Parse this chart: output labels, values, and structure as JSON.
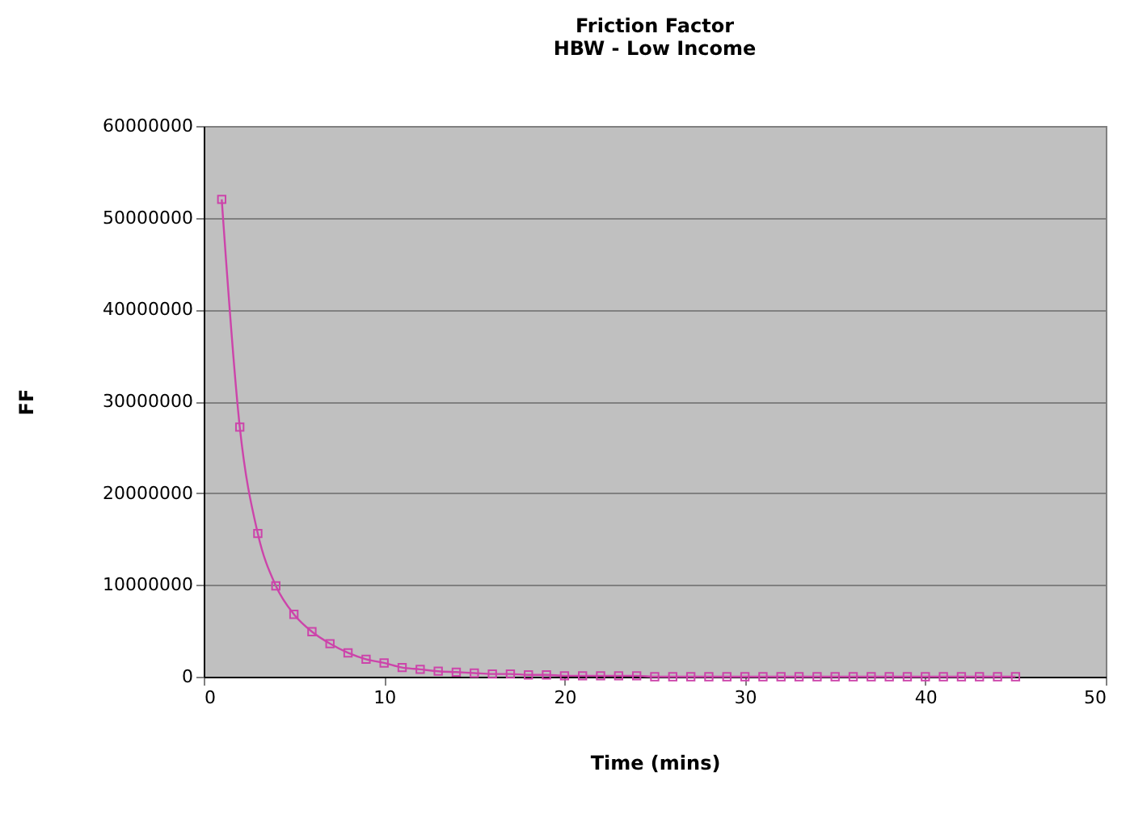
{
  "chart_data": {
    "type": "line",
    "title": "Friction Factor\nHBW - Low Income",
    "xlabel": "Time (mins)",
    "ylabel": "FF",
    "x": [
      1,
      2,
      3,
      4,
      5,
      6,
      7,
      8,
      9,
      10,
      11,
      12,
      13,
      14,
      15,
      16,
      17,
      18,
      19,
      20,
      21,
      22,
      23,
      24,
      25,
      26,
      27,
      28,
      29,
      30,
      31,
      32,
      33,
      34,
      35,
      36,
      37,
      38,
      39,
      40,
      41,
      42,
      43,
      44,
      45
    ],
    "series": [
      {
        "color": "#cc44aa",
        "values": [
          52000000,
          27200000,
          15600000,
          9900000,
          6800000,
          4900000,
          3600000,
          2600000,
          1900000,
          1500000,
          1000000,
          800000,
          600000,
          500000,
          400000,
          300000,
          300000,
          200000,
          200000,
          100000,
          100000,
          100000,
          100000,
          100000,
          0,
          0,
          0,
          0,
          0,
          0,
          0,
          0,
          0,
          0,
          0,
          0,
          0,
          0,
          0,
          0,
          0,
          0,
          0,
          0,
          0
        ]
      }
    ],
    "xlim": [
      0,
      50
    ],
    "xticks": [
      0,
      10,
      20,
      30,
      40,
      50
    ],
    "ylim": [
      0,
      60000000
    ],
    "yticks": [
      0,
      10000000,
      20000000,
      30000000,
      40000000,
      50000000,
      60000000
    ],
    "grid": "y",
    "marker": "square",
    "line_style": "solid"
  }
}
